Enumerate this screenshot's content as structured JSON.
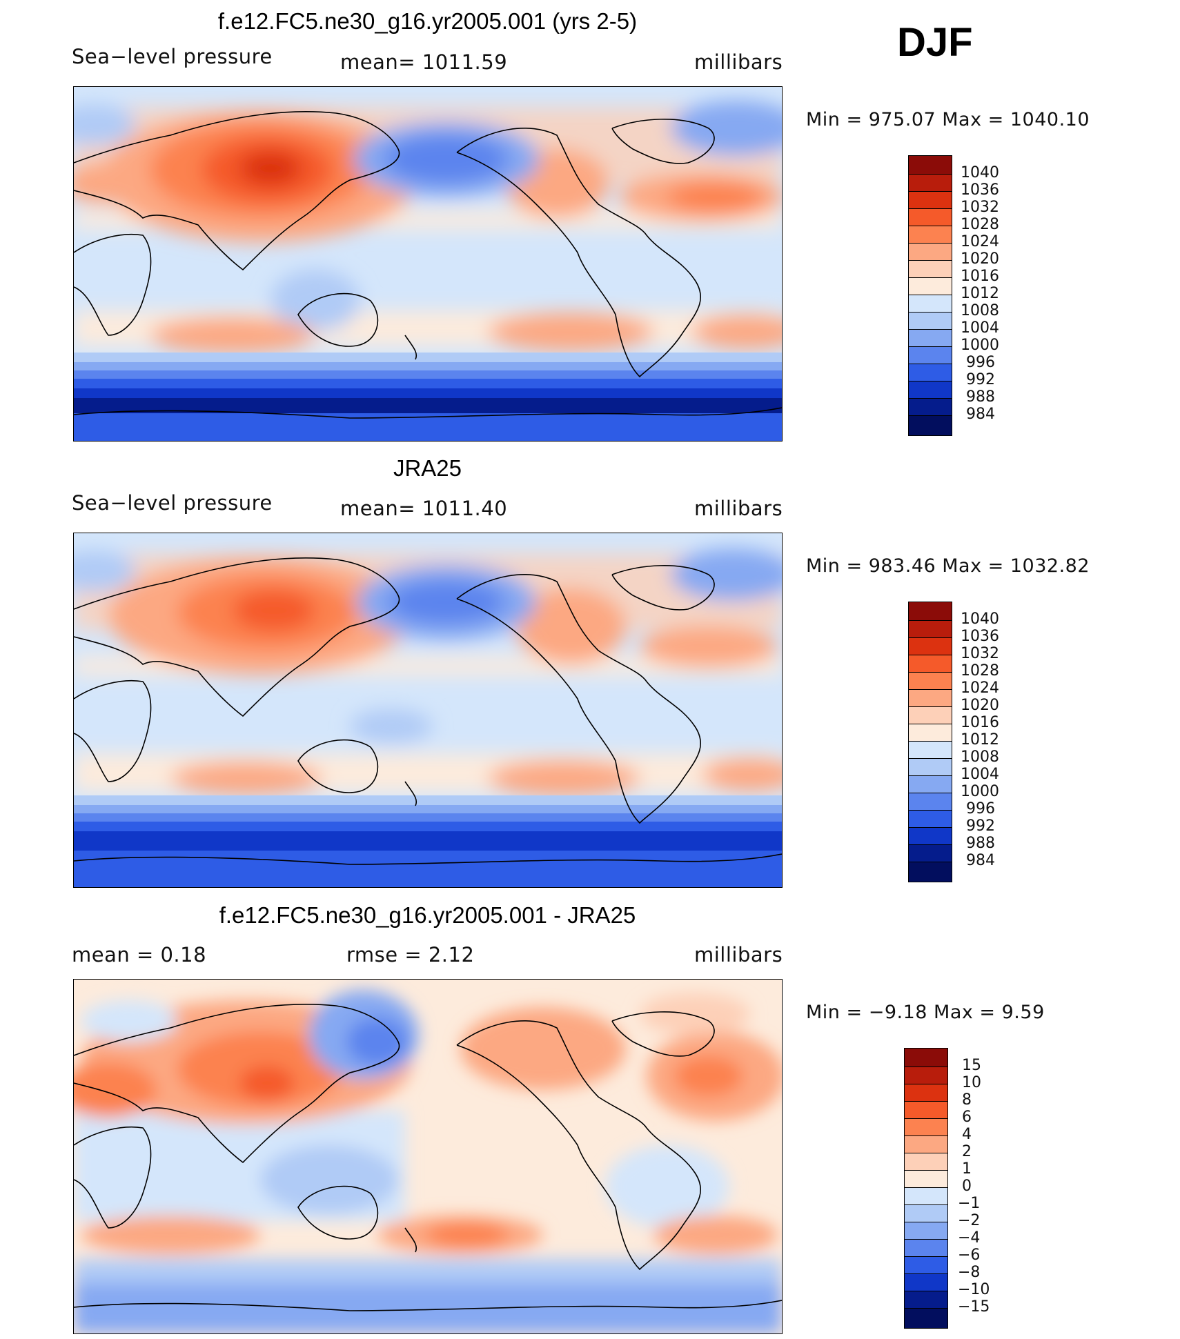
{
  "season": "DJF",
  "units": "millibars",
  "chart_data": [
    {
      "type": "heatmap",
      "id": "model",
      "title": "f.e12.FC5.ne30_g16.yr2005.001 (yrs 2-5)",
      "left_label": "Sea−level pressure",
      "mean_text": "mean=  1011.59",
      "units": "millibars",
      "min_max_text": "Min  =  975.07  Max  =  1040.10",
      "levels": [
        "1040",
        "1036",
        "1032",
        "1028",
        "1024",
        "1020",
        "1016",
        "1012",
        "1008",
        "1004",
        "1000",
        "996",
        "992",
        "988",
        "984"
      ],
      "colors": [
        "#8b0c08",
        "#b81d0c",
        "#dc3210",
        "#f55a2a",
        "#fc8250",
        "#fca882",
        "#fdd0b8",
        "#fdebdc",
        "#d4e6fb",
        "#b0cbf6",
        "#86a9f2",
        "#5b84ee",
        "#2e5ce6",
        "#1037c8",
        "#051c8c"
      ]
    },
    {
      "type": "heatmap",
      "id": "obs",
      "title": "JRA25",
      "left_label": "Sea−level pressure",
      "mean_text": "mean=  1011.40",
      "units": "millibars",
      "min_max_text": "Min  =  983.46  Max  =  1032.82",
      "levels": [
        "1040",
        "1036",
        "1032",
        "1028",
        "1024",
        "1020",
        "1016",
        "1012",
        "1008",
        "1004",
        "1000",
        "996",
        "992",
        "988",
        "984"
      ],
      "colors": [
        "#8b0c08",
        "#b81d0c",
        "#dc3210",
        "#f55a2a",
        "#fc8250",
        "#fca882",
        "#fdd0b8",
        "#fdebdc",
        "#d4e6fb",
        "#b0cbf6",
        "#86a9f2",
        "#5b84ee",
        "#2e5ce6",
        "#1037c8",
        "#051c8c"
      ]
    },
    {
      "type": "heatmap",
      "id": "diff",
      "title": "f.e12.FC5.ne30_g16.yr2005.001 - JRA25",
      "left_label": "mean  =     0.18",
      "mean_text": "rmse  =     2.12",
      "units": "millibars",
      "min_max_text": "Min  =   −9.18  Max  =      9.59",
      "levels": [
        "15",
        "10",
        "8",
        "6",
        "4",
        "2",
        "1",
        "0",
        "−1",
        "−2",
        "−4",
        "−6",
        "−8",
        "−10",
        "−15"
      ],
      "colors": [
        "#8b0c08",
        "#b81d0c",
        "#dc3210",
        "#f55a2a",
        "#fc8250",
        "#fca882",
        "#fdd0b8",
        "#fdebdc",
        "#d4e6fb",
        "#b0cbf6",
        "#86a9f2",
        "#5b84ee",
        "#2e5ce6",
        "#1037c8",
        "#051c8c",
        "#020e5e"
      ]
    }
  ]
}
